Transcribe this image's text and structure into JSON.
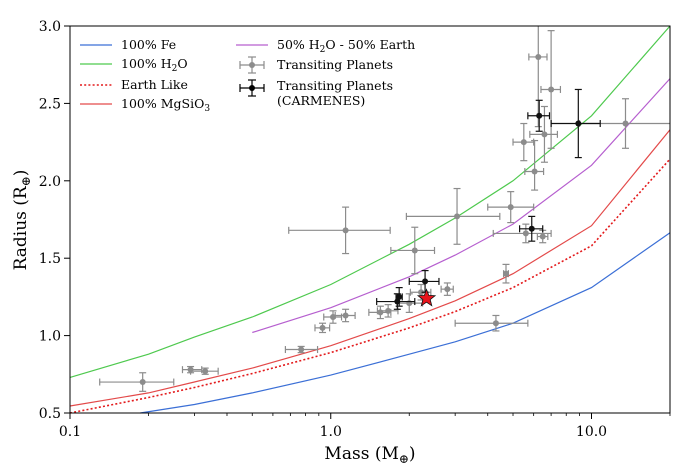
{
  "chart_data": {
    "type": "scatter",
    "xlabel": "Mass (M",
    "xlabel_sub": "⊕",
    "xlabel_end": ")",
    "ylabel": "Radius (R",
    "ylabel_sub": "⊕",
    "ylabel_end": ")",
    "xscale": "log",
    "xlim": [
      0.1,
      20
    ],
    "ylim": [
      0.5,
      3.0
    ],
    "grid": false,
    "legend_position": "top-left",
    "x_ticks": [
      {
        "value": 0.1,
        "label": "0.1"
      },
      {
        "value": 1,
        "label": "1.0"
      },
      {
        "value": 10,
        "label": "10.0"
      }
    ],
    "y_ticks": [
      {
        "value": 0.5,
        "label": "0.5"
      },
      {
        "value": 1.0,
        "label": "1.0"
      },
      {
        "value": 1.5,
        "label": "1.5"
      },
      {
        "value": 2.0,
        "label": "2.0"
      },
      {
        "value": 2.5,
        "label": "2.5"
      },
      {
        "value": 3.0,
        "label": "3.0"
      }
    ],
    "legend_left": [
      {
        "key": "fe",
        "label": "100% Fe"
      },
      {
        "key": "h2o",
        "label": "100% H",
        "sub": "2",
        "tail": "O"
      },
      {
        "key": "earth",
        "label": "Earth Like"
      },
      {
        "key": "mgsio3",
        "label": "100% MgSiO",
        "sub": "3",
        "tail": ""
      }
    ],
    "legend_right": [
      {
        "key": "mix",
        "label": "50% H",
        "sub": "2",
        "tail": "O - 50% Earth"
      },
      {
        "key": "transiting",
        "label": "Transiting Planets"
      },
      {
        "key": "carmenes",
        "label": "Transiting Planets",
        "line2": "(CARMENES)"
      }
    ],
    "curves": [
      {
        "key": "fe",
        "color": "#3b6fd6",
        "dash": false,
        "points": [
          [
            0.186,
            0.5
          ],
          [
            0.3,
            0.555
          ],
          [
            0.5,
            0.63
          ],
          [
            1,
            0.745
          ],
          [
            2,
            0.88
          ],
          [
            3,
            0.96
          ],
          [
            5,
            1.08
          ],
          [
            10,
            1.31
          ],
          [
            20,
            1.665
          ]
        ]
      },
      {
        "key": "h2o",
        "color": "#4ec94e",
        "dash": false,
        "points": [
          [
            0.1,
            0.73
          ],
          [
            0.2,
            0.88
          ],
          [
            0.3,
            0.99
          ],
          [
            0.5,
            1.12
          ],
          [
            1,
            1.33
          ],
          [
            2,
            1.59
          ],
          [
            3,
            1.76
          ],
          [
            5,
            2.0
          ],
          [
            10,
            2.42
          ],
          [
            20,
            3.0
          ]
        ]
      },
      {
        "key": "earth",
        "color": "#e31a1c",
        "dash": true,
        "points": [
          [
            0.1,
            0.5
          ],
          [
            0.2,
            0.6
          ],
          [
            0.3,
            0.665
          ],
          [
            0.5,
            0.755
          ],
          [
            1,
            0.89
          ],
          [
            2,
            1.05
          ],
          [
            3,
            1.155
          ],
          [
            5,
            1.31
          ],
          [
            10,
            1.58
          ],
          [
            20,
            2.14
          ]
        ]
      },
      {
        "key": "mgsio3",
        "color": "#e34a4a",
        "dash": false,
        "points": [
          [
            0.1,
            0.545
          ],
          [
            0.2,
            0.63
          ],
          [
            0.3,
            0.7
          ],
          [
            0.5,
            0.79
          ],
          [
            1,
            0.935
          ],
          [
            2,
            1.11
          ],
          [
            3,
            1.225
          ],
          [
            5,
            1.4
          ],
          [
            10,
            1.71
          ],
          [
            20,
            2.33
          ]
        ]
      },
      {
        "key": "mix",
        "color": "#b65fcf",
        "dash": false,
        "points": [
          [
            0.5,
            1.02
          ],
          [
            1,
            1.18
          ],
          [
            2,
            1.38
          ],
          [
            3,
            1.52
          ],
          [
            5,
            1.72
          ],
          [
            10,
            2.1
          ],
          [
            20,
            2.66
          ]
        ]
      }
    ],
    "transiting_points": [
      {
        "x": 0.19,
        "y": 0.7,
        "xerr": [
          0.06,
          0.06
        ],
        "yerr": [
          0.06,
          0.06
        ]
      },
      {
        "x": 0.29,
        "y": 0.78,
        "xerr": [
          0.02,
          0.03
        ],
        "yerr": [
          0.02,
          0.02
        ]
      },
      {
        "x": 0.33,
        "y": 0.77,
        "xerr": [
          0.04,
          0.04
        ],
        "yerr": [
          0.02,
          0.02
        ]
      },
      {
        "x": 0.77,
        "y": 0.91,
        "xerr": [
          0.1,
          0.12
        ],
        "yerr": [
          0.02,
          0.02
        ]
      },
      {
        "x": 0.93,
        "y": 1.05,
        "xerr": [
          0.06,
          0.06
        ],
        "yerr": [
          0.03,
          0.03
        ]
      },
      {
        "x": 1.02,
        "y": 1.12,
        "xerr": [
          0.08,
          0.08
        ],
        "yerr": [
          0.04,
          0.04
        ]
      },
      {
        "x": 1.14,
        "y": 1.13,
        "xerr": [
          0.1,
          0.1
        ],
        "yerr": [
          0.04,
          0.04
        ]
      },
      {
        "x": 1.14,
        "y": 1.68,
        "xerr": [
          0.45,
          0.55
        ],
        "yerr": [
          0.15,
          0.15
        ]
      },
      {
        "x": 1.55,
        "y": 1.15,
        "xerr": [
          0.15,
          0.15
        ],
        "yerr": [
          0.04,
          0.04
        ]
      },
      {
        "x": 1.66,
        "y": 1.16,
        "xerr": [
          0.15,
          0.15
        ],
        "yerr": [
          0.04,
          0.04
        ]
      },
      {
        "x": 2.0,
        "y": 1.21,
        "xerr": [
          0.2,
          0.25
        ],
        "yerr": [
          0.06,
          0.06
        ]
      },
      {
        "x": 2.1,
        "y": 1.55,
        "xerr": [
          0.4,
          0.4
        ],
        "yerr": [
          0.15,
          0.15
        ]
      },
      {
        "x": 2.22,
        "y": 1.28,
        "xerr": [
          0.2,
          0.2
        ],
        "yerr": [
          0.05,
          0.05
        ]
      },
      {
        "x": 2.8,
        "y": 1.3,
        "xerr": [
          0.15,
          0.15
        ],
        "yerr": [
          0.04,
          0.04
        ]
      },
      {
        "x": 3.05,
        "y": 1.77,
        "xerr": [
          1.1,
          1.4
        ],
        "yerr": [
          0.18,
          0.18
        ]
      },
      {
        "x": 4.3,
        "y": 1.08,
        "xerr": [
          1.3,
          1.4
        ],
        "yerr": [
          0.05,
          0.05
        ]
      },
      {
        "x": 4.7,
        "y": 1.4,
        "xerr": [
          0.1,
          0.1
        ],
        "yerr": [
          0.06,
          0.06
        ]
      },
      {
        "x": 4.9,
        "y": 1.83,
        "xerr": [
          0.9,
          1.1
        ],
        "yerr": [
          0.1,
          0.1
        ]
      },
      {
        "x": 5.5,
        "y": 2.25,
        "xerr": [
          0.5,
          0.5
        ],
        "yerr": [
          0.12,
          0.12
        ]
      },
      {
        "x": 5.6,
        "y": 1.66,
        "xerr": [
          1.4,
          1.4
        ],
        "yerr": [
          0.06,
          0.06
        ]
      },
      {
        "x": 6.05,
        "y": 2.06,
        "xerr": [
          0.5,
          0.5
        ],
        "yerr": [
          0.12,
          0.2
        ]
      },
      {
        "x": 6.25,
        "y": 2.8,
        "xerr": [
          0.5,
          0.5
        ],
        "yerr": [
          0.45,
          0.45
        ]
      },
      {
        "x": 6.5,
        "y": 1.64,
        "xerr": [
          0.3,
          0.3
        ],
        "yerr": [
          0.04,
          0.04
        ]
      },
      {
        "x": 6.6,
        "y": 2.3,
        "xerr": [
          0.8,
          0.8
        ],
        "yerr": [
          0.18,
          0.18
        ]
      },
      {
        "x": 7.0,
        "y": 2.59,
        "xerr": [
          0.6,
          0.6
        ],
        "yerr": [
          0.38,
          0.38
        ]
      },
      {
        "x": 13.5,
        "y": 2.37,
        "xerr": [
          4.5,
          6.5
        ],
        "yerr": [
          0.16,
          0.16
        ]
      }
    ],
    "carmenes_points": [
      {
        "x": 1.8,
        "y": 1.22,
        "xerr": [
          0.3,
          0.3
        ],
        "yerr": [
          0.05,
          0.05
        ]
      },
      {
        "x": 1.83,
        "y": 1.25,
        "xerr": [
          0.05,
          0.05
        ],
        "yerr": [
          0.06,
          0.06
        ]
      },
      {
        "x": 2.3,
        "y": 1.35,
        "xerr": [
          0.3,
          0.3
        ],
        "yerr": [
          0.07,
          0.07
        ]
      },
      {
        "x": 5.9,
        "y": 1.69,
        "xerr": [
          0.6,
          0.6
        ],
        "yerr": [
          0.08,
          0.08
        ]
      },
      {
        "x": 6.3,
        "y": 2.42,
        "xerr": [
          0.6,
          0.6
        ],
        "yerr": [
          0.1,
          0.1
        ]
      },
      {
        "x": 8.9,
        "y": 2.37,
        "xerr": [
          1.9,
          1.9
        ],
        "yerr": [
          0.22,
          0.22
        ]
      }
    ],
    "highlight_point": {
      "x": 2.33,
      "y": 1.24,
      "color": "#e8141c"
    }
  }
}
